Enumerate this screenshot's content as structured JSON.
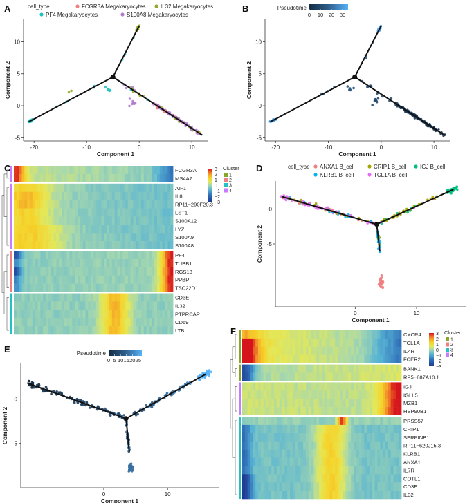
{
  "panels": [
    "A",
    "B",
    "C",
    "D",
    "E",
    "F"
  ],
  "chart_data": [
    {
      "panel": "A",
      "type": "scatter",
      "xlabel": "Component 1",
      "ylabel": "Component 2",
      "xlim": [
        -22,
        13
      ],
      "ylim": [
        -5.5,
        13.5
      ],
      "xticks": [
        -20,
        -10,
        0,
        10
      ],
      "yticks": [
        -5,
        0,
        5,
        10
      ],
      "legend_title": "cell_type",
      "legend": [
        {
          "name": "FCGR3A Megakaryocytes",
          "color": "#f07f7f"
        },
        {
          "name": "IL32 Megakaryocytes",
          "color": "#8faa26"
        },
        {
          "name": "PF4 Megakaryocytes",
          "color": "#23c1c4"
        },
        {
          "name": "S100A8 Megakaryocytes",
          "color": "#b07cd2"
        }
      ],
      "tree": {
        "branch_point": [
          -5,
          4.5
        ],
        "ends": [
          [
            -21,
            -2.5
          ],
          [
            0,
            12.5
          ],
          [
            12,
            -4.6
          ]
        ]
      }
    },
    {
      "panel": "B",
      "type": "scatter",
      "xlabel": "Component 1",
      "ylabel": "Component 2",
      "xlim": [
        -22,
        13
      ],
      "ylim": [
        -5.5,
        13.5
      ],
      "xticks": [
        -20,
        -10,
        0,
        10
      ],
      "yticks": [
        -5,
        0,
        5,
        10
      ],
      "colorbar_title": "Pseudotime",
      "colorbar_ticks": [
        "0",
        "10",
        "20",
        "30"
      ],
      "colorbar_range": [
        0,
        35
      ],
      "tree": {
        "branch_point": [
          -5,
          4.5
        ],
        "ends": [
          [
            -21,
            -2.5
          ],
          [
            0,
            12.5
          ],
          [
            12,
            -4.6
          ]
        ]
      }
    },
    {
      "panel": "C",
      "type": "heatmap",
      "genes": [
        "FCGR3A",
        "MS4A7",
        "AIF1",
        "IL8",
        "RP11−290F20.3",
        "LST1",
        "S100A12",
        "LYZ",
        "S100A9",
        "S100A8",
        "PF4",
        "TUBB1",
        "RGS18",
        "PPBP",
        "TSC22D1",
        "CD3E",
        "IL32",
        "PTPRCAP",
        "CD69",
        "LTB"
      ],
      "groups": [
        2,
        8,
        5,
        5
      ],
      "scale_ticks": [
        "3",
        "2",
        "1",
        "0",
        "−1",
        "−2",
        "−3"
      ],
      "legend_title": "Cluster",
      "legend": [
        {
          "name": "1",
          "color": "#8aa629"
        },
        {
          "name": "2",
          "color": "#f07f7f"
        },
        {
          "name": "3",
          "color": "#23c1c4"
        },
        {
          "name": "4",
          "color": "#c77cff"
        }
      ]
    },
    {
      "panel": "D",
      "type": "scatter",
      "xlabel": "Component 1",
      "ylabel": "Component 2",
      "xlim": [
        -13,
        18
      ],
      "ylim": [
        -14,
        4
      ],
      "xticks": [
        0,
        10
      ],
      "yticks": [
        -5,
        0
      ],
      "legend_title": "cell_type",
      "legend": [
        {
          "name": "ANXA1 B_cell",
          "color": "#f07f7f"
        },
        {
          "name": "CRIP1 B_cell",
          "color": "#a3a500"
        },
        {
          "name": "IGJ B_cell",
          "color": "#00bf7d"
        },
        {
          "name": "KLRB1 B_cell",
          "color": "#00b0f6"
        },
        {
          "name": "TCL1A B_cell",
          "color": "#e76bf3"
        }
      ],
      "tree": {
        "branch_point": [
          3.5,
          -2.2
        ],
        "ends": [
          [
            -12,
            1.8
          ],
          [
            16,
            2.8
          ],
          [
            4,
            -6
          ]
        ]
      }
    },
    {
      "panel": "E",
      "type": "scatter",
      "xlabel": "Component 1",
      "ylabel": "Component 2",
      "xlim": [
        -13,
        18
      ],
      "ylim": [
        -10,
        4
      ],
      "xticks": [
        0,
        10
      ],
      "yticks": [
        -5,
        0
      ],
      "colorbar_title": "Pseudotime",
      "colorbar_ticks": [
        "0",
        "5",
        "10",
        "15",
        "20",
        "25"
      ],
      "colorbar_range": [
        0,
        28
      ],
      "tree": {
        "branch_point": [
          3.5,
          -2.2
        ],
        "ends": [
          [
            -12,
            1.8
          ],
          [
            16,
            2.8
          ],
          [
            4,
            -6
          ]
        ]
      }
    },
    {
      "panel": "F",
      "type": "heatmap",
      "genes": [
        "CXCR4",
        "TCL1A",
        "IL4R",
        "FCER2",
        "BANK1",
        "RP5−887A10.1",
        "IGJ",
        "IGLL5",
        "MZB1",
        "HSP90B1",
        "PRSS57",
        "CRIP1",
        "SERPINB1",
        "RP11−620J15.3",
        "KLRB1",
        "ANXA1",
        "IL7R",
        "COTL1",
        "CD3E",
        "IL32"
      ],
      "groups": [
        4,
        2,
        4,
        10
      ],
      "scale_ticks": [
        "3",
        "2",
        "1",
        "0",
        "−1",
        "−2",
        "−3"
      ],
      "legend_title": "Cluster",
      "legend": [
        {
          "name": "1",
          "color": "#8aa629"
        },
        {
          "name": "2",
          "color": "#f07f7f"
        },
        {
          "name": "3",
          "color": "#23c1c4"
        },
        {
          "name": "4",
          "color": "#c77cff"
        }
      ]
    }
  ]
}
